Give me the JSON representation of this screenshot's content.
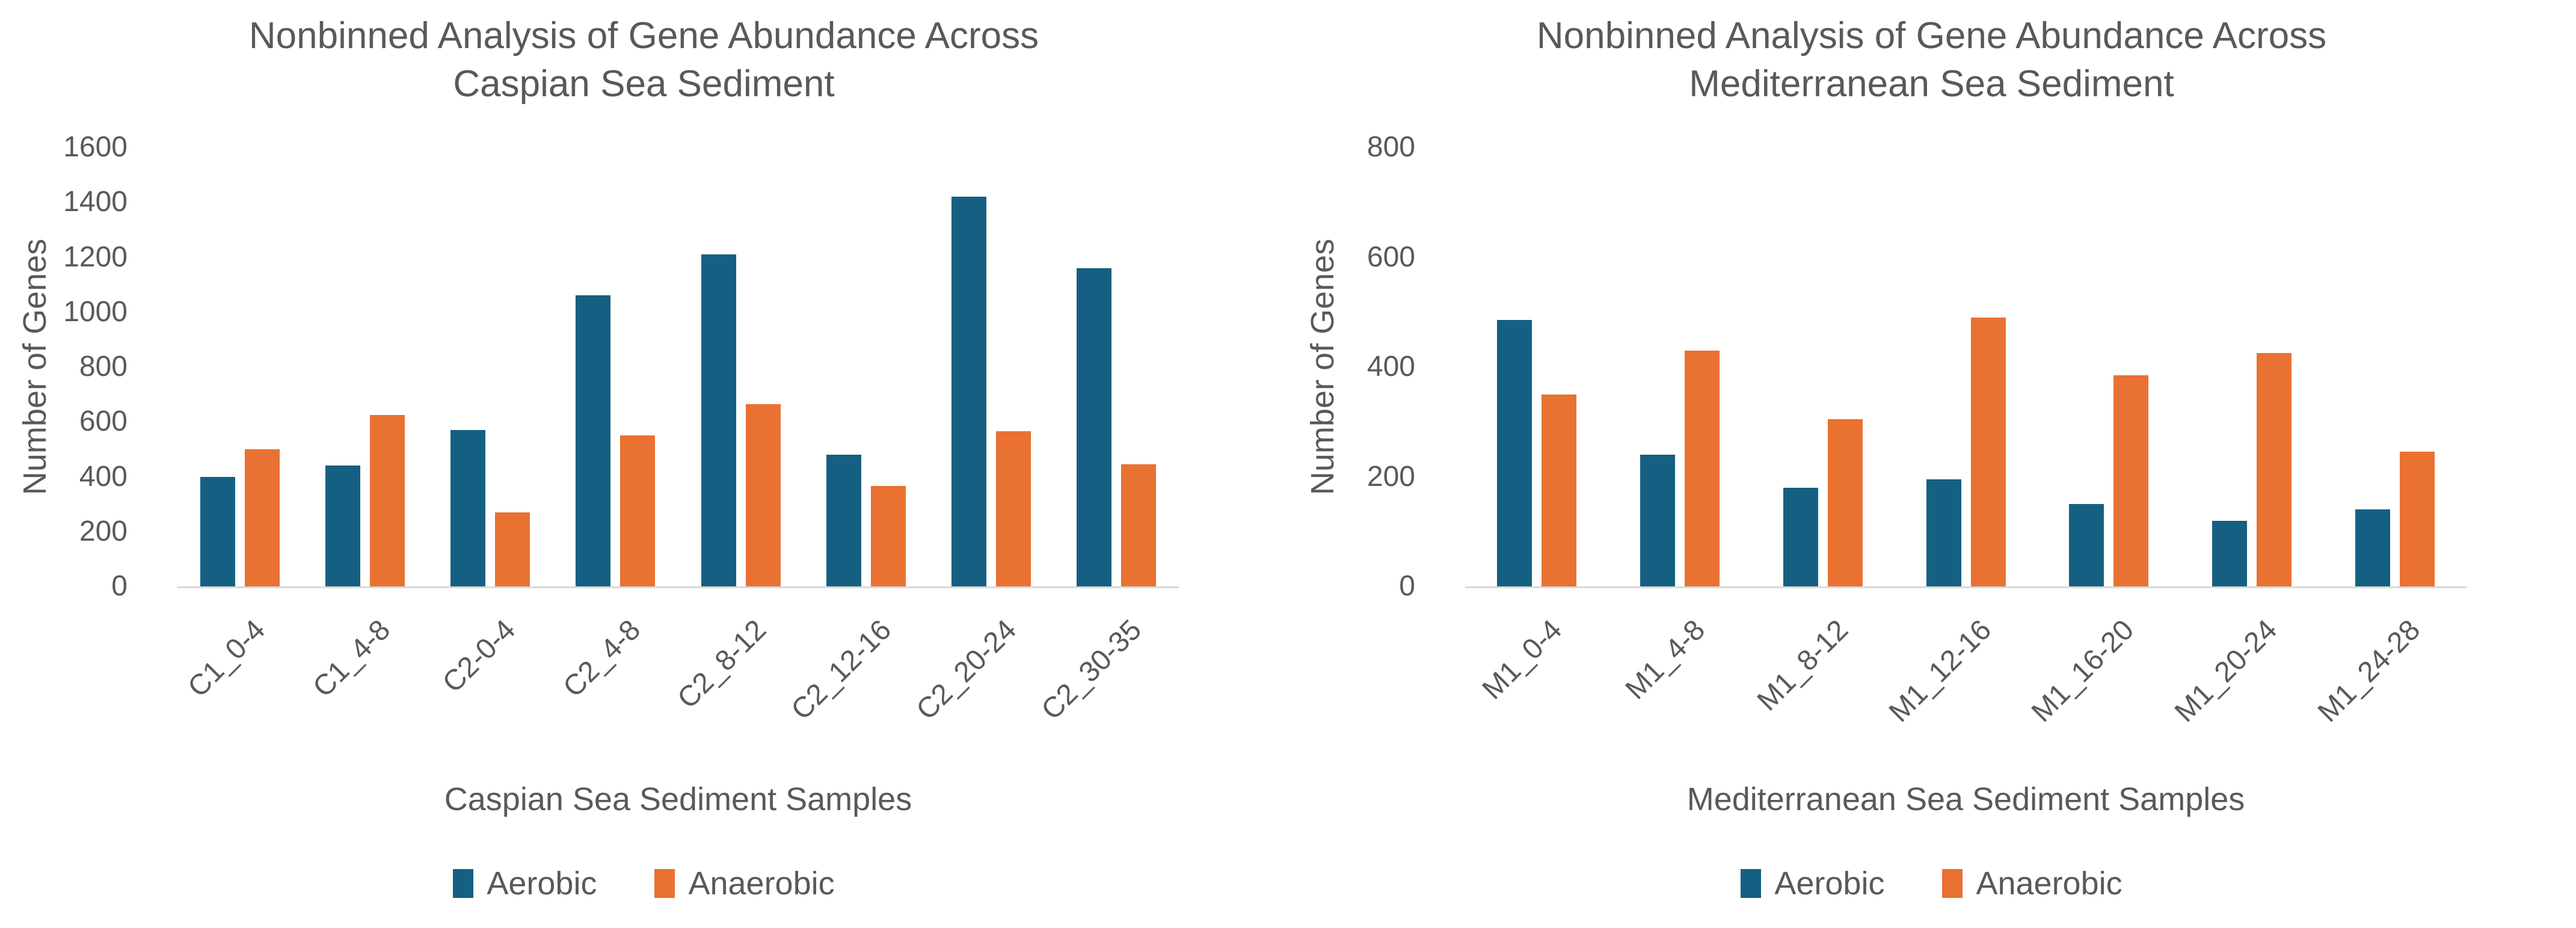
{
  "page": {
    "background": "#FFFFFF"
  },
  "colors": {
    "aerobic": "#156082",
    "anaerobic": "#E97132",
    "text": "#595959",
    "axis_line": "#D9D9D9"
  },
  "chart_data": [
    {
      "type": "bar",
      "title_line1": "Nonbinned Analysis of Gene Abundance Across",
      "title_line2": "Caspian Sea Sediment",
      "xlabel": "Caspian Sea Sediment Samples",
      "ylabel": "Number of Genes",
      "ylim": [
        0,
        1600
      ],
      "ytick_labels": [
        0,
        200,
        400,
        600,
        800,
        1000,
        1200,
        1400,
        1600
      ],
      "grid": false,
      "legend_position": "bottom",
      "categories": [
        "C1_0-4",
        "C1_4-8",
        "C2-0-4",
        "C2_4-8",
        "C2_8-12",
        "C2_12-16",
        "C2_20-24",
        "C2_30-35"
      ],
      "series": [
        {
          "name": "Aerobic",
          "color_key": "aerobic",
          "values": [
            400,
            440,
            570,
            1060,
            1210,
            480,
            1420,
            1160
          ]
        },
        {
          "name": "Anaerobic",
          "color_key": "anaerobic",
          "values": [
            500,
            625,
            270,
            550,
            665,
            365,
            565,
            445
          ]
        }
      ]
    },
    {
      "type": "bar",
      "title_line1": "Nonbinned Analysis of Gene Abundance Across",
      "title_line2": "Mediterranean Sea Sediment",
      "xlabel": "Mediterranean Sea Sediment Samples",
      "ylabel": "Number of Genes",
      "ylim": [
        0,
        800
      ],
      "ytick_labels": [
        0,
        200,
        400,
        600,
        800
      ],
      "grid": false,
      "legend_position": "bottom",
      "categories": [
        "M1_0-4",
        "M1_4-8",
        "M1_8-12",
        "M1_12-16",
        "M1_16-20",
        "M1_20-24",
        "M1_24-28"
      ],
      "series": [
        {
          "name": "Aerobic",
          "color_key": "aerobic",
          "values": [
            485,
            240,
            180,
            195,
            150,
            120,
            140
          ]
        },
        {
          "name": "Anaerobic",
          "color_key": "anaerobic",
          "values": [
            350,
            430,
            305,
            490,
            385,
            425,
            245
          ]
        }
      ]
    }
  ]
}
